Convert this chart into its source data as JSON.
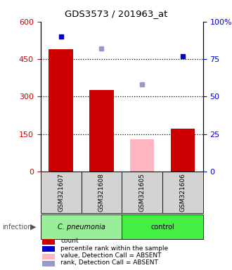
{
  "title": "GDS3573 / 201963_at",
  "samples": [
    "GSM321607",
    "GSM321608",
    "GSM321605",
    "GSM321606"
  ],
  "bar_values": [
    490,
    325,
    null,
    170
  ],
  "bar_values_absent": [
    null,
    null,
    130,
    null
  ],
  "percentile_present": [
    90,
    null,
    null,
    77
  ],
  "percentile_absent": [
    null,
    82,
    58,
    null
  ],
  "ylim_left": [
    0,
    600
  ],
  "ylim_right": [
    0,
    100
  ],
  "yticks_left": [
    0,
    150,
    300,
    450,
    600
  ],
  "yticks_right": [
    0,
    25,
    50,
    75,
    100
  ],
  "bar_color": "#CC0000",
  "bar_color_absent": "#FFB6C1",
  "dot_color": "#0000CC",
  "dot_color_absent": "#9999CC",
  "left_tick_color": "#CC0000",
  "right_tick_color": "#0000CC",
  "group_label_1": "C. pneumonia",
  "group_label_2": "control",
  "group_color_1": "#99EE99",
  "group_color_2": "#44EE44",
  "legend_items": [
    {
      "label": "count",
      "color": "#CC0000"
    },
    {
      "label": "percentile rank within the sample",
      "color": "#0000CC"
    },
    {
      "label": "value, Detection Call = ABSENT",
      "color": "#FFB6C1"
    },
    {
      "label": "rank, Detection Call = ABSENT",
      "color": "#9999CC"
    }
  ]
}
